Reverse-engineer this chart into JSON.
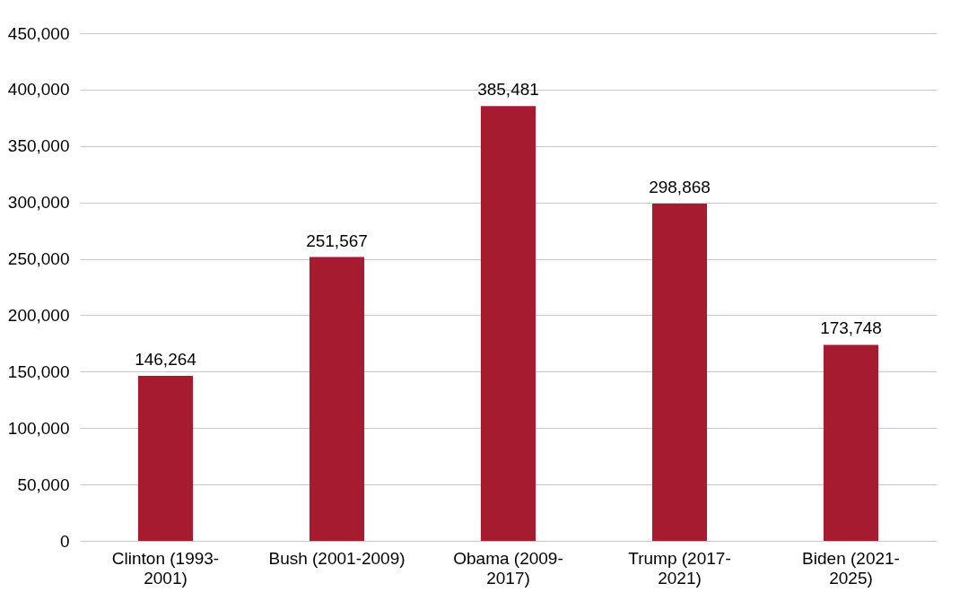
{
  "chart_data": {
    "type": "bar",
    "categories": [
      "Clinton (1993-2001)",
      "Bush (2001-2009)",
      "Obama (2009-2017)",
      "Trump (2017-2021)",
      "Biden (2021-2025)"
    ],
    "values": [
      146264,
      251567,
      385481,
      298868,
      173748
    ],
    "value_labels": [
      "146,264",
      "251,567",
      "385,481",
      "298,868",
      "173,748"
    ],
    "color": "#a61b30",
    "ylim": [
      0,
      450000
    ],
    "yticks": [
      0,
      {
        "value": 50000,
        "label": "50,000"
      },
      {
        "value": 100000,
        "label": "100,000"
      },
      {
        "value": 150000,
        "label": "150,000"
      },
      {
        "value": 200000,
        "label": "200,000"
      },
      {
        "value": 250000,
        "label": "250,000"
      },
      {
        "value": 300000,
        "label": "300,000"
      },
      {
        "value": 350000,
        "label": "350,000"
      },
      {
        "value": 400000,
        "label": "400,000"
      },
      {
        "value": 450000,
        "label": "450,000"
      }
    ],
    "grid": "y"
  }
}
